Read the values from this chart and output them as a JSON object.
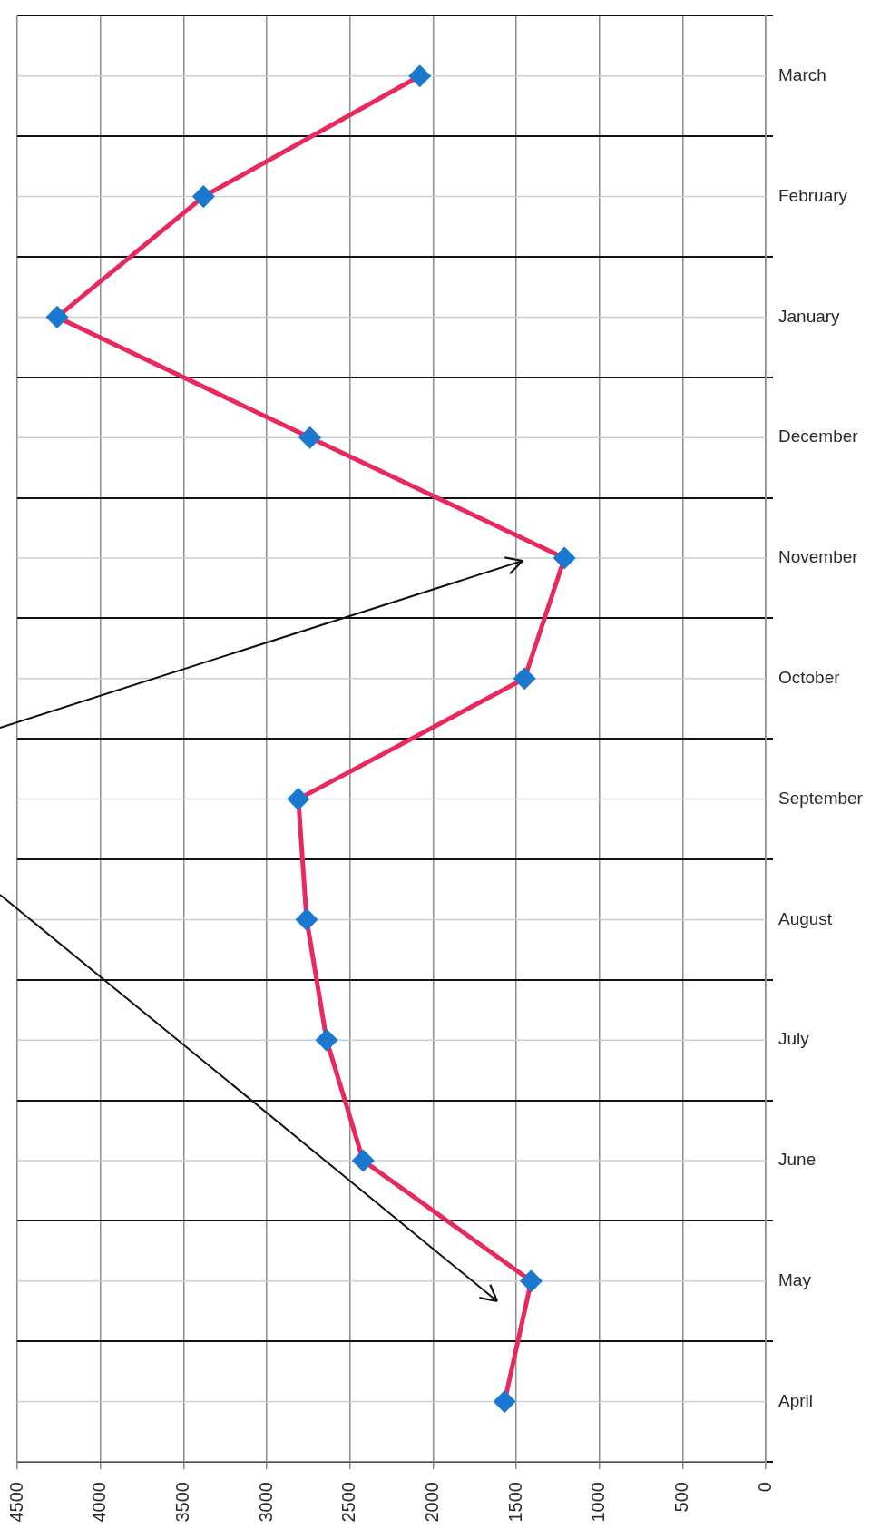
{
  "chart_data": {
    "type": "line",
    "orientation": "horizontal",
    "categories": [
      "March",
      "February",
      "January",
      "December",
      "November",
      "October",
      "September",
      "August",
      "July",
      "June",
      "May",
      "April"
    ],
    "series": [
      {
        "color": "#e8295e",
        "colors": [
          "#1a78cf",
          "#1a78cf",
          "#1a78cf",
          "#1a78cf",
          "#1a78cf",
          "#1a78cf",
          "#1a78cf",
          "#1a78cf",
          "#1a78cf",
          "#1a78cf",
          "#1a78cf",
          "#1a78cf"
        ],
        "values": [
          2080,
          3380,
          4260,
          2740,
          1210,
          1450,
          2810,
          2760,
          2640,
          2420,
          1410,
          1570
        ]
      }
    ],
    "xlim": [
      4500,
      0
    ],
    "xticks": [
      4500,
      4000,
      3500,
      3000,
      2500,
      2000,
      1500,
      1000,
      500,
      0
    ],
    "grid": true,
    "marker": "diamond"
  }
}
